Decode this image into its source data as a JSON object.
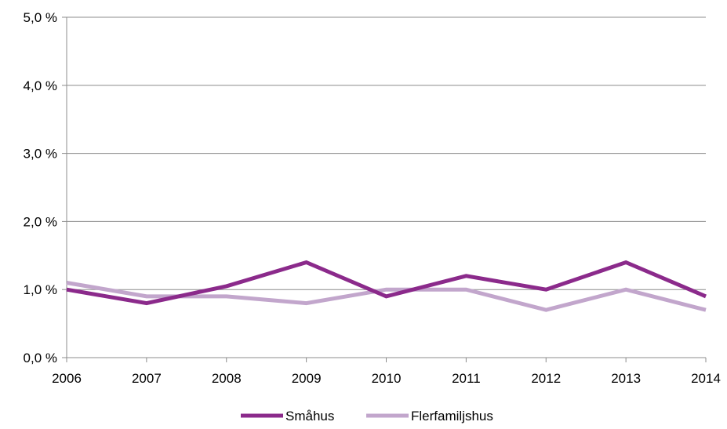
{
  "chart_data": {
    "type": "line",
    "title": "",
    "xlabel": "",
    "ylabel": "",
    "x": [
      "2006",
      "2007",
      "2008",
      "2009",
      "2010",
      "2011",
      "2012",
      "2013",
      "2014"
    ],
    "y_ticks": [
      "0,0 %",
      "1,0 %",
      "2,0 %",
      "3,0 %",
      "4,0 %",
      "5,0 %"
    ],
    "ylim": [
      0,
      5
    ],
    "grid": true,
    "legend_position": "bottom",
    "series": [
      {
        "name": "Småhus",
        "color": "#8b2a8b",
        "values": [
          1.0,
          0.8,
          1.05,
          1.4,
          0.9,
          1.2,
          1.0,
          1.4,
          0.9
        ]
      },
      {
        "name": "Flerfamiljshus",
        "color": "#c2a6cc",
        "values": [
          1.1,
          0.9,
          0.9,
          0.8,
          1.0,
          1.0,
          0.7,
          1.0,
          0.7
        ]
      }
    ]
  }
}
